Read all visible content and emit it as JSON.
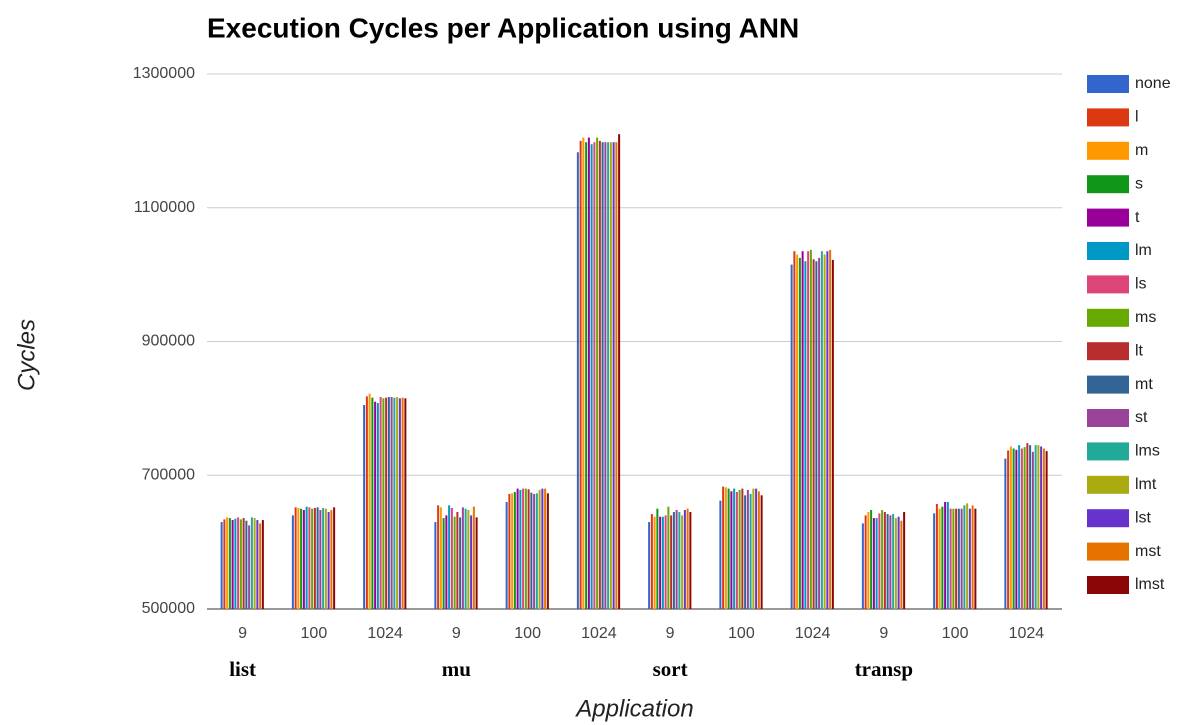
{
  "chart_data": {
    "type": "bar",
    "title": "Execution Cycles per Application using ANN",
    "x_label": "Application",
    "y_label": "Cycles",
    "categories": [
      "9",
      "100",
      "1024",
      "9",
      "100",
      "1024",
      "9",
      "100",
      "1024",
      "9",
      "100",
      "1024"
    ],
    "group_labels": [
      "list",
      "mu",
      "sort",
      "transp"
    ],
    "ylim": [
      500000,
      1300000
    ],
    "yticks": [
      500000,
      700000,
      900000,
      1100000,
      1300000
    ],
    "grid": true,
    "legend": "right",
    "series": [
      {
        "name": "none",
        "color": "#3366cc",
        "values": [
          630000,
          640000,
          805000,
          630000,
          660000,
          1183000,
          630000,
          662000,
          1015000,
          628000,
          643000,
          725000
        ]
      },
      {
        "name": "l",
        "color": "#dc3912",
        "values": [
          634000,
          652000,
          818000,
          655000,
          672000,
          1200000,
          642000,
          683000,
          1035000,
          640000,
          657000,
          737000
        ]
      },
      {
        "name": "m",
        "color": "#ff9900",
        "values": [
          637000,
          651000,
          822000,
          652000,
          673000,
          1205000,
          638000,
          682000,
          1030000,
          645000,
          650000,
          743000
        ]
      },
      {
        "name": "s",
        "color": "#109618",
        "values": [
          636000,
          650000,
          816000,
          636000,
          675000,
          1198000,
          650000,
          680000,
          1025000,
          648000,
          653000,
          740000
        ]
      },
      {
        "name": "t",
        "color": "#990099",
        "values": [
          633000,
          648000,
          810000,
          640000,
          680000,
          1205000,
          638000,
          676000,
          1035000,
          636000,
          660000,
          738000
        ]
      },
      {
        "name": "lm",
        "color": "#0099c6",
        "values": [
          635000,
          653000,
          808000,
          655000,
          678000,
          1195000,
          638000,
          680000,
          1020000,
          636000,
          660000,
          745000
        ]
      },
      {
        "name": "ls",
        "color": "#dd4477",
        "values": [
          637000,
          652000,
          817000,
          651000,
          680000,
          1198000,
          640000,
          675000,
          1035000,
          643000,
          650000,
          740000
        ]
      },
      {
        "name": "ms",
        "color": "#66aa00",
        "values": [
          634000,
          650000,
          815000,
          638000,
          680000,
          1205000,
          653000,
          678000,
          1037000,
          648000,
          650000,
          742000
        ]
      },
      {
        "name": "lt",
        "color": "#b82e2e",
        "values": [
          636000,
          651000,
          816000,
          645000,
          679000,
          1200000,
          640000,
          680000,
          1023000,
          645000,
          650000,
          748000
        ]
      },
      {
        "name": "mt",
        "color": "#316395",
        "values": [
          632000,
          652000,
          817000,
          637000,
          674000,
          1198000,
          645000,
          670000,
          1020000,
          642000,
          650000,
          745000
        ]
      },
      {
        "name": "st",
        "color": "#994499",
        "values": [
          625000,
          648000,
          817000,
          652000,
          672000,
          1198000,
          648000,
          678000,
          1025000,
          640000,
          650000,
          735000
        ]
      },
      {
        "name": "lms",
        "color": "#22aa99",
        "values": [
          637000,
          651000,
          816000,
          650000,
          673000,
          1198000,
          645000,
          672000,
          1035000,
          642000,
          655000,
          745000
        ]
      },
      {
        "name": "lmt",
        "color": "#aaaa11",
        "values": [
          636000,
          650000,
          817000,
          648000,
          678000,
          1198000,
          640000,
          680000,
          1030000,
          636000,
          658000,
          745000
        ]
      },
      {
        "name": "lst",
        "color": "#6633cc",
        "values": [
          633000,
          645000,
          815000,
          640000,
          680000,
          1198000,
          648000,
          680000,
          1035000,
          638000,
          650000,
          743000
        ]
      },
      {
        "name": "mst",
        "color": "#e67300",
        "values": [
          628000,
          648000,
          816000,
          653000,
          680000,
          1198000,
          650000,
          676000,
          1037000,
          632000,
          655000,
          740000
        ]
      },
      {
        "name": "lmst",
        "color": "#8b0707",
        "values": [
          633000,
          652000,
          815000,
          637000,
          673000,
          1210000,
          645000,
          670000,
          1022000,
          645000,
          650000,
          736000
        ]
      }
    ]
  }
}
